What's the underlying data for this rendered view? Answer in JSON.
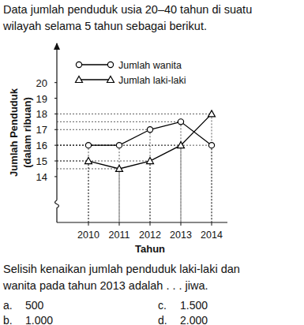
{
  "intro": [
    "Data jumlah penduduk usia 20–40 tahun di suatu",
    "wilayah selama 5 tahun sebagai berikut."
  ],
  "chart_data": {
    "type": "line",
    "ylabel": [
      "Jumlah Penduduk",
      "(dalam ribuan)"
    ],
    "xlabel": "Tahun",
    "categories": [
      "2010",
      "2011",
      "2012",
      "2013",
      "2014"
    ],
    "series": [
      {
        "name": "Jumlah wanita",
        "color": "#000000",
        "marker": "circle",
        "values": [
          16,
          16,
          17,
          17.5,
          16
        ]
      },
      {
        "name": "Jumlah laki-laki",
        "color": "#000000",
        "marker": "triangle",
        "values": [
          15,
          14.5,
          15,
          16,
          18
        ]
      }
    ],
    "ylim": [
      12.5,
      22.5
    ],
    "yticks": [
      14,
      15,
      16,
      17,
      18,
      19,
      20
    ],
    "grid": false,
    "legend": "top"
  },
  "question": [
    "Selisih kenaikan jumlah penduduk laki-laki dan",
    "wanita pada tahun 2013 adalah . . . jiwa."
  ],
  "options": [
    {
      "letter": "a.",
      "text": "500"
    },
    {
      "letter": "b.",
      "text": "1.000"
    },
    {
      "letter": "c.",
      "text": "1.500"
    },
    {
      "letter": "d.",
      "text": "2.000"
    }
  ]
}
